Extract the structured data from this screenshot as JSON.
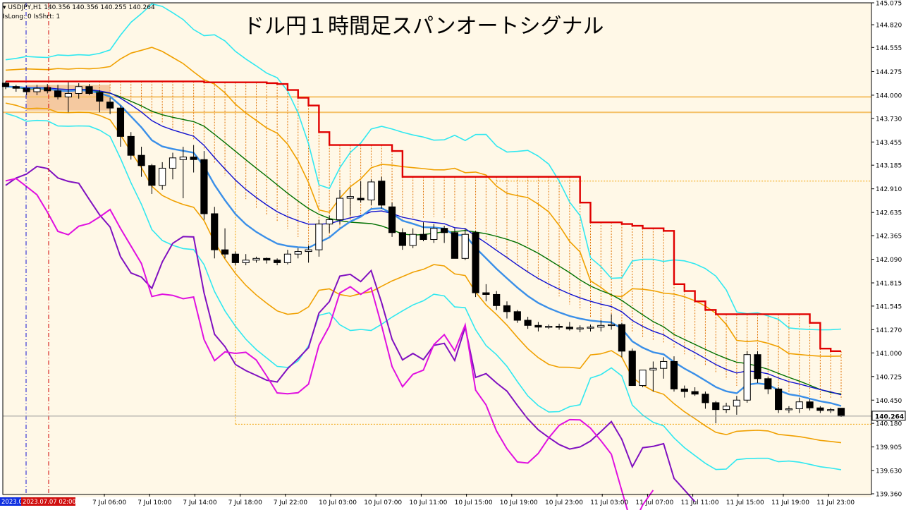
{
  "symbol_line": "USDJPY,H1  140.356 140.356 140.255 140.264",
  "indicator_line": "IsLong: 0 IsShrt: 1",
  "overlay_title": "ドル円１時間足スパンオートシグナル",
  "price_label": "140.264",
  "left_tag_blue": "2023.0",
  "left_tag_red": "2023.07.07 02:00",
  "colors": {
    "background": "#FFF8E7",
    "bull_candle": "#FFFFFF",
    "bear_candle": "#000000",
    "red_line": "#E00000",
    "blue_line": "#1010D0",
    "lightblue_line": "#3A8FE8",
    "green_line": "#007000",
    "orange_band": "#F0A000",
    "cyan_band": "#30E8F0",
    "purple_line": "#8010C0",
    "magenta_line": "#E010E0",
    "span_hatch": "#E07000",
    "resistance": "#F5C26A"
  },
  "chart_data": {
    "type": "candlestick",
    "title": "ドル円１時間足スパンオートシグナル",
    "ylim": [
      139.36,
      145.075
    ],
    "y_ticks": [
      "145.075",
      "144.820",
      "144.555",
      "144.275",
      "144.000",
      "143.730",
      "143.455",
      "143.185",
      "142.910",
      "142.635",
      "142.365",
      "142.090",
      "141.815",
      "141.545",
      "141.270",
      "141.000",
      "140.725",
      "140.450",
      "140.180",
      "139.905",
      "139.630",
      "139.360"
    ],
    "x_ticks": [
      "7 Jul 06:00",
      "7 Jul 10:00",
      "7 Jul 14:00",
      "7 Jul 18:00",
      "7 Jul 22:00",
      "10 Jul 03:00",
      "10 Jul 07:00",
      "10 Jul 11:00",
      "10 Jul 15:00",
      "10 Jul 19:00",
      "10 Jul 23:00",
      "11 Jul 03:00",
      "11 Jul 07:00",
      "11 Jul 11:00",
      "11 Jul 15:00",
      "11 Jul 19:00",
      "11 Jul 23:00"
    ],
    "candles": [
      [
        144.14,
        144.16,
        144.07,
        144.1
      ],
      [
        144.1,
        144.12,
        144.04,
        144.08
      ],
      [
        144.08,
        144.11,
        144.0,
        144.04
      ],
      [
        144.04,
        144.12,
        144.0,
        144.08
      ],
      [
        144.09,
        144.13,
        144.02,
        144.05
      ],
      [
        144.05,
        144.12,
        143.95,
        143.98
      ],
      [
        143.98,
        144.15,
        143.8,
        144.02
      ],
      [
        144.02,
        144.14,
        143.96,
        144.1
      ],
      [
        144.1,
        144.13,
        144.0,
        144.02
      ],
      [
        144.03,
        144.06,
        143.8,
        143.93
      ],
      [
        143.92,
        143.97,
        143.78,
        143.85
      ],
      [
        143.85,
        143.88,
        143.4,
        143.52
      ],
      [
        143.52,
        143.57,
        143.25,
        143.3
      ],
      [
        143.3,
        143.4,
        143.05,
        143.18
      ],
      [
        143.18,
        143.2,
        142.85,
        142.95
      ],
      [
        142.95,
        143.22,
        142.9,
        143.15
      ],
      [
        143.15,
        143.33,
        143.02,
        143.27
      ],
      [
        143.25,
        143.4,
        142.8,
        143.28
      ],
      [
        143.28,
        143.42,
        143.1,
        143.25
      ],
      [
        143.25,
        143.35,
        142.55,
        142.62
      ],
      [
        142.62,
        142.7,
        142.1,
        142.2
      ],
      [
        142.2,
        142.45,
        142.1,
        142.15
      ],
      [
        142.15,
        142.18,
        142.02,
        142.05
      ],
      [
        142.05,
        142.15,
        142.02,
        142.08
      ],
      [
        142.08,
        142.12,
        142.05,
        142.1
      ],
      [
        142.1,
        142.11,
        142.04,
        142.08
      ],
      [
        142.08,
        142.1,
        142.02,
        142.05
      ],
      [
        142.05,
        142.2,
        142.03,
        142.15
      ],
      [
        142.15,
        142.22,
        142.1,
        142.18
      ],
      [
        142.18,
        142.25,
        142.05,
        142.2
      ],
      [
        142.2,
        142.55,
        142.12,
        142.5
      ],
      [
        142.5,
        142.6,
        142.4,
        142.55
      ],
      [
        142.55,
        142.9,
        142.5,
        142.8
      ],
      [
        142.8,
        142.92,
        142.6,
        142.82
      ],
      [
        142.8,
        143.0,
        142.75,
        142.78
      ],
      [
        142.78,
        143.02,
        142.72,
        142.99
      ],
      [
        143.0,
        143.05,
        142.68,
        142.72
      ],
      [
        142.7,
        142.75,
        142.35,
        142.4
      ],
      [
        142.4,
        142.45,
        142.2,
        142.25
      ],
      [
        142.25,
        142.45,
        142.22,
        142.38
      ],
      [
        142.38,
        142.52,
        142.3,
        142.32
      ],
      [
        142.32,
        142.5,
        142.28,
        142.45
      ],
      [
        142.45,
        142.48,
        142.28,
        142.4
      ],
      [
        142.4,
        142.45,
        142.1,
        142.1
      ],
      [
        142.1,
        142.45,
        142.08,
        142.38
      ],
      [
        142.4,
        142.42,
        141.65,
        141.7
      ],
      [
        141.7,
        141.8,
        141.6,
        141.68
      ],
      [
        141.68,
        141.72,
        141.5,
        141.55
      ],
      [
        141.55,
        141.6,
        141.4,
        141.48
      ],
      [
        141.48,
        141.5,
        141.35,
        141.38
      ],
      [
        141.38,
        141.42,
        141.28,
        141.32
      ],
      [
        141.32,
        141.36,
        141.25,
        141.3
      ],
      [
        141.3,
        141.33,
        141.28,
        141.31
      ],
      [
        141.31,
        141.34,
        141.27,
        141.3
      ],
      [
        141.3,
        141.36,
        141.26,
        141.28
      ],
      [
        141.28,
        141.32,
        141.24,
        141.29
      ],
      [
        141.29,
        141.33,
        141.25,
        141.3
      ],
      [
        141.3,
        141.38,
        141.25,
        141.32
      ],
      [
        141.32,
        141.45,
        141.27,
        141.33
      ],
      [
        141.33,
        141.35,
        140.95,
        141.02
      ],
      [
        141.02,
        141.05,
        140.65,
        140.62
      ],
      [
        140.62,
        140.75,
        140.6,
        140.8
      ],
      [
        140.8,
        140.9,
        140.55,
        140.82
      ],
      [
        140.82,
        140.95,
        140.7,
        140.9
      ],
      [
        140.9,
        140.96,
        140.55,
        140.58
      ],
      [
        140.58,
        140.62,
        140.48,
        140.55
      ],
      [
        140.55,
        140.6,
        140.5,
        140.52
      ],
      [
        140.52,
        140.55,
        140.35,
        140.42
      ],
      [
        140.42,
        140.44,
        140.18,
        140.34
      ],
      [
        140.34,
        140.42,
        140.3,
        140.38
      ],
      [
        140.38,
        140.5,
        140.28,
        140.45
      ],
      [
        140.45,
        141.02,
        140.42,
        140.98
      ],
      [
        140.98,
        141.02,
        140.65,
        140.7
      ],
      [
        140.7,
        140.72,
        140.52,
        140.58
      ],
      [
        140.58,
        140.6,
        140.3,
        140.34
      ],
      [
        140.34,
        140.38,
        140.3,
        140.35
      ],
      [
        140.35,
        140.48,
        140.3,
        140.43
      ],
      [
        140.43,
        140.46,
        140.33,
        140.36
      ],
      [
        140.36,
        140.38,
        140.3,
        140.33
      ],
      [
        140.33,
        140.36,
        140.3,
        140.34
      ],
      [
        140.356,
        140.356,
        140.255,
        140.264
      ]
    ]
  }
}
